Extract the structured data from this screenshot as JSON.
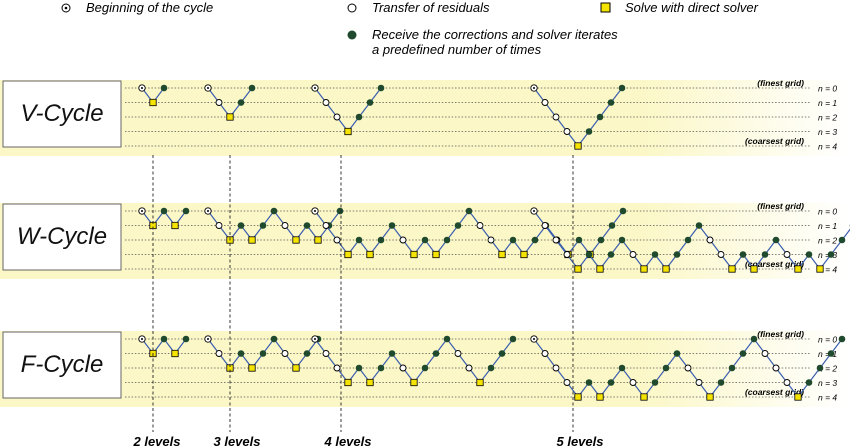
{
  "legend": {
    "beginning": "Beginning of the cycle",
    "transfer": "Transfer of residuals",
    "direct": "Solve with direct solver",
    "corrections_line1": "Receive the corrections and solver iterates",
    "corrections_line2": "a predefined number of times"
  },
  "grid_labels": {
    "finest": "(finest grid)",
    "coarsest": "(coarsest grid)",
    "levels": [
      "n = 0",
      "n = 1",
      "n = 2",
      "n = 3",
      "n = 4"
    ]
  },
  "panels": [
    {
      "title": "V-Cycle",
      "type": "V"
    },
    {
      "title": "W-Cycle",
      "type": "W"
    },
    {
      "title": "F-Cycle",
      "type": "F"
    }
  ],
  "depth_labels": [
    "2 levels",
    "3 levels",
    "4 levels",
    "5 levels"
  ],
  "colors": {
    "band": "#fbf7c6",
    "band_fade": "#ffffff",
    "line": "#3b5fb0",
    "correction_dot": "#1f4a2e",
    "direct_square": "#f5e400",
    "title_box_border": "#666666"
  }
}
